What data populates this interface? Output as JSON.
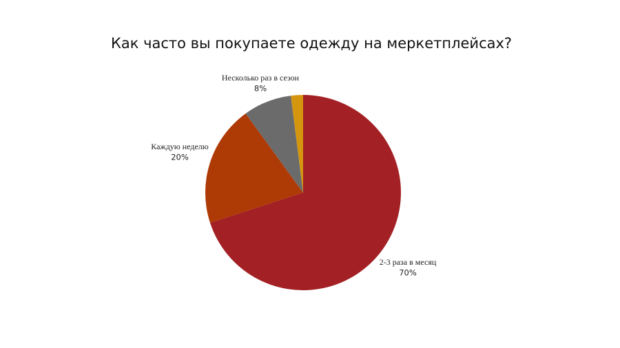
{
  "chart_data": {
    "type": "pie",
    "title": "Как часто вы покупаете одежду на меркетплейсах?",
    "categories": [
      "2-3 раза в месяц",
      "Каждую неделю",
      "Несколько раз в сезон",
      null
    ],
    "values": [
      70,
      20,
      8,
      2
    ],
    "value_labels": [
      "70%",
      "20%",
      "8%",
      null
    ],
    "colors": [
      "#a32024",
      "#ae3a05",
      "#6b6b6b",
      "#d4960f"
    ]
  }
}
